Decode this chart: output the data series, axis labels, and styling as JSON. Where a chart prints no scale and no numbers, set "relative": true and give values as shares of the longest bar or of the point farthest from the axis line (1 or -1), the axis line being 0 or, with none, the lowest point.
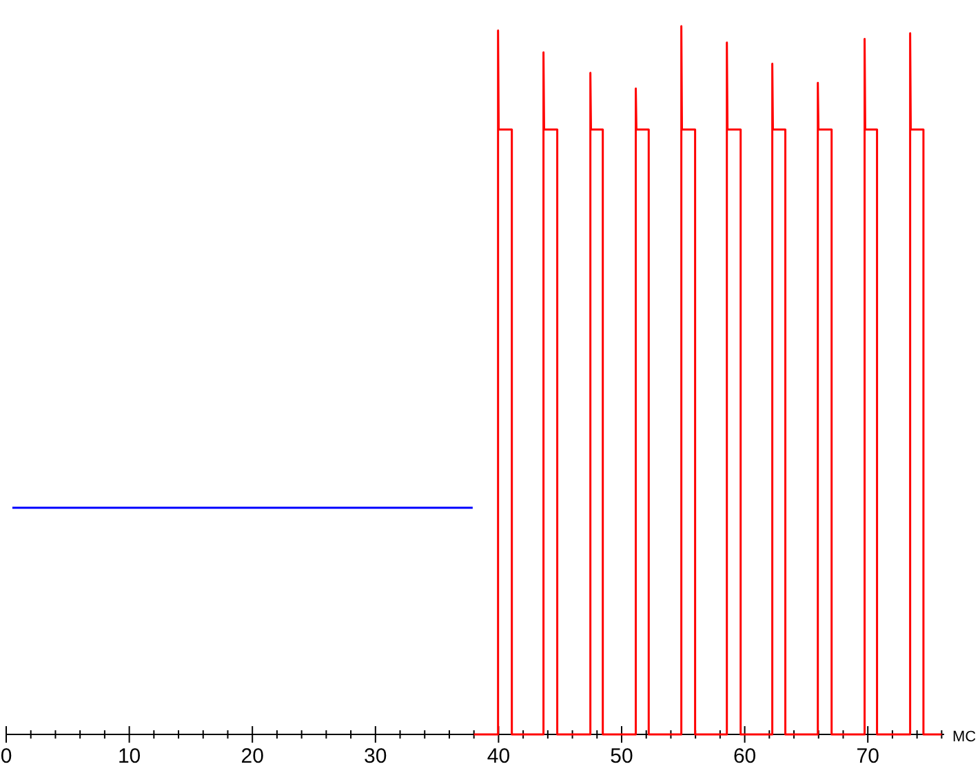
{
  "chart_data": {
    "type": "line",
    "relative": true,
    "xlabel": "МС",
    "xlim": [
      0,
      76.2
    ],
    "xticks": [
      0,
      {
        "value": 2,
        "label": null
      },
      {
        "value": 4,
        "label": null
      },
      {
        "value": 6,
        "label": null
      },
      {
        "value": 8,
        "label": null
      },
      10,
      {
        "value": 12,
        "label": null
      },
      {
        "value": 14,
        "label": null
      },
      {
        "value": 16,
        "label": null
      },
      {
        "value": 18,
        "label": null
      },
      20,
      {
        "value": 22,
        "label": null
      },
      {
        "value": 24,
        "label": null
      },
      {
        "value": 26,
        "label": null
      },
      {
        "value": 28,
        "label": null
      },
      30,
      {
        "value": 32,
        "label": null
      },
      {
        "value": 34,
        "label": null
      },
      {
        "value": 36,
        "label": null
      },
      {
        "value": 38,
        "label": null
      },
      40,
      {
        "value": 42,
        "label": null
      },
      {
        "value": 44,
        "label": null
      },
      {
        "value": 46,
        "label": null
      },
      {
        "value": 48,
        "label": null
      },
      50,
      {
        "value": 52,
        "label": null
      },
      {
        "value": 54,
        "label": null
      },
      {
        "value": 56,
        "label": null
      },
      {
        "value": 58,
        "label": null
      },
      60,
      {
        "value": 62,
        "label": null
      },
      {
        "value": 64,
        "label": null
      },
      {
        "value": 66,
        "label": null
      },
      {
        "value": 68,
        "label": null
      },
      70,
      {
        "value": 72,
        "label": null
      },
      {
        "value": 74,
        "label": null
      },
      {
        "value": 76,
        "label": null
      }
    ],
    "grid": false,
    "marker": "none",
    "line_style": "solid",
    "series": [
      {
        "color": "#0000ff",
        "x": [
          0.5,
          5,
          10,
          15,
          20,
          25,
          30,
          35,
          37.9
        ],
        "values": [
          0.32,
          0.32,
          0.32,
          0.32,
          0.32,
          0.32,
          0.32,
          0.32,
          0.32
        ]
      },
      {
        "color": "#ff0000",
        "x": [
          38,
          39.96,
          39.96,
          40.01,
          41.08,
          41.08,
          43.65,
          43.65,
          43.7,
          44.77,
          44.77,
          47.46,
          47.46,
          47.51,
          48.47,
          48.47,
          51.15,
          51.15,
          51.2,
          52.2,
          52.2,
          54.85,
          54.85,
          54.9,
          55.97,
          55.97,
          58.55,
          58.55,
          58.6,
          59.67,
          59.67,
          62.24,
          62.24,
          62.29,
          63.3,
          63.3,
          65.94,
          65.94,
          65.99,
          67.06,
          67.06,
          69.74,
          69.74,
          69.79,
          70.75,
          70.75,
          73.44,
          73.44,
          73.49,
          74.52,
          74.52,
          76
        ],
        "values": [
          0,
          0,
          0.994,
          0.854,
          0.854,
          0,
          0,
          0.963,
          0.854,
          0.854,
          0,
          0,
          0.934,
          0.854,
          0.854,
          0,
          0,
          0.912,
          0.854,
          0.854,
          0,
          0,
          1,
          0.854,
          0.854,
          0,
          0,
          0.977,
          0.854,
          0.854,
          0,
          0,
          0.947,
          0.854,
          0.854,
          0,
          0,
          0.92,
          0.854,
          0.854,
          0,
          0,
          0.982,
          0.854,
          0.854,
          0,
          0,
          0.99,
          0.854,
          0.854,
          0,
          0
        ]
      }
    ]
  }
}
